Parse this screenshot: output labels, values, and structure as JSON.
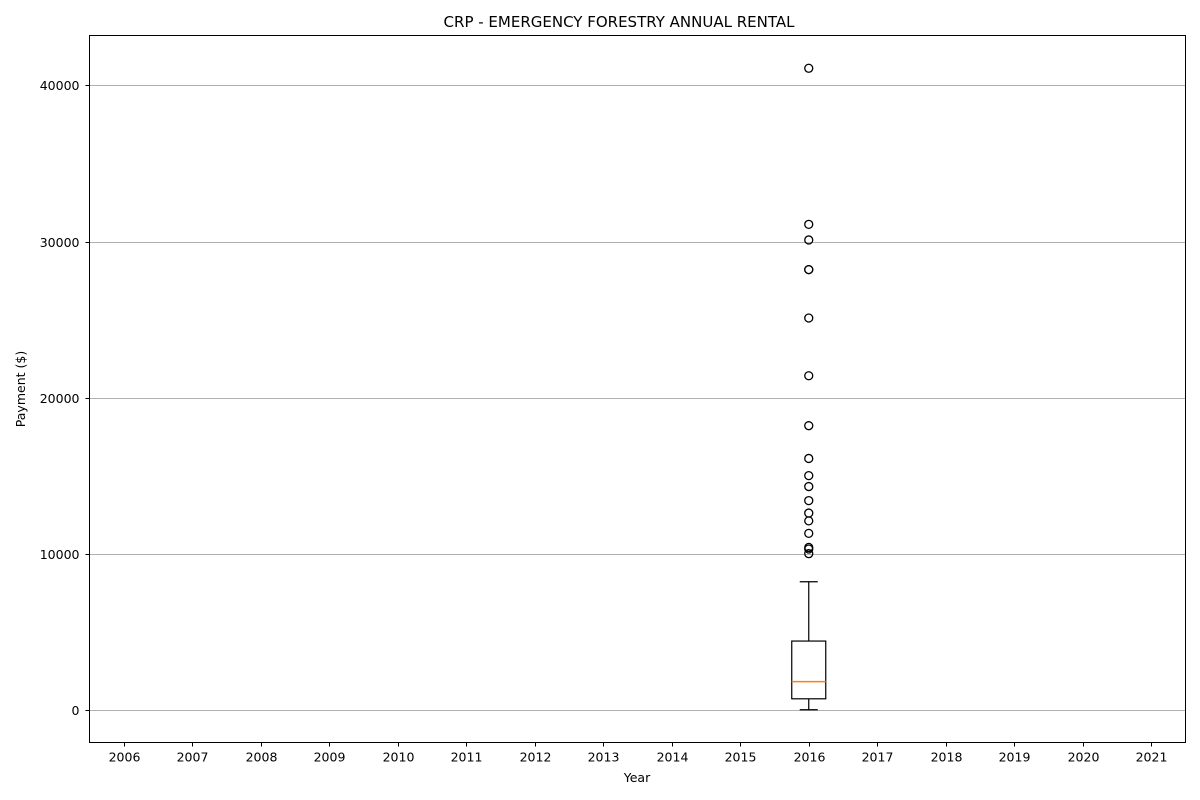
{
  "chart_data": {
    "type": "box",
    "title": "CRP - EMERGENCY FORESTRY ANNUAL RENTAL",
    "xlabel": "Year",
    "ylabel": "Payment ($)",
    "categories": [
      "2006",
      "2007",
      "2008",
      "2009",
      "2010",
      "2011",
      "2012",
      "2013",
      "2014",
      "2015",
      "2016",
      "2017",
      "2018",
      "2019",
      "2020",
      "2021"
    ],
    "ylim": [
      -2100,
      43200
    ],
    "yticks": [
      0,
      10000,
      20000,
      30000,
      40000
    ],
    "grid": "horizontal",
    "boxes": [
      {
        "category": "2016",
        "whisker_low": 0,
        "q1": 700,
        "median": 1800,
        "q3": 4400,
        "whisker_high": 8200,
        "fliers": [
          41100,
          31100,
          30100,
          28200,
          28200,
          25100,
          21400,
          18200,
          16100,
          15000,
          14300,
          13400,
          12600,
          12100,
          11300,
          10400,
          10300,
          10000
        ]
      }
    ],
    "colors": {
      "median": "#ff7f0e",
      "box": "#000000",
      "grid": "#b0b0b0"
    }
  }
}
